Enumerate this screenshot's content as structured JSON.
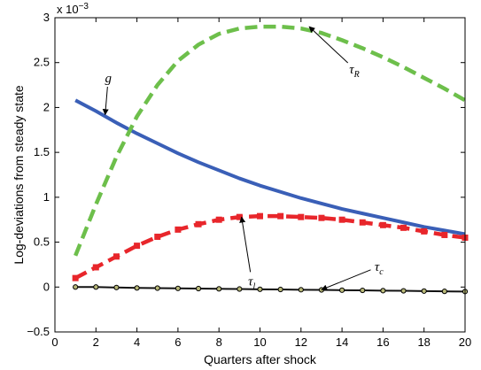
{
  "chart_data": {
    "type": "line",
    "xlabel": "Quarters after shock",
    "ylabel": "Log-deviations from steady state",
    "y_multiplier": "x 10",
    "y_multiplier_exp": "−3",
    "xlim": [
      0,
      20
    ],
    "ylim": [
      -0.5,
      3
    ],
    "x_ticks": [
      0,
      2,
      4,
      6,
      8,
      10,
      12,
      14,
      16,
      18,
      20
    ],
    "y_ticks": [
      -0.5,
      0,
      0.5,
      1,
      1.5,
      2,
      2.5,
      3
    ],
    "y_tick_labels": [
      "−0.5",
      "0",
      "0.5",
      "1",
      "1.5",
      "2",
      "2.5",
      "3"
    ],
    "grid": false,
    "legend": "none",
    "x": [
      1,
      2,
      3,
      4,
      5,
      6,
      7,
      8,
      9,
      10,
      11,
      12,
      13,
      14,
      15,
      16,
      17,
      18,
      19,
      20
    ],
    "series": [
      {
        "label": "g",
        "color": "#3a5fb7",
        "style": "solid",
        "marker": "none",
        "values": [
          2.08,
          1.96,
          1.83,
          1.71,
          1.6,
          1.49,
          1.39,
          1.3,
          1.21,
          1.13,
          1.06,
          0.99,
          0.93,
          0.87,
          0.82,
          0.77,
          0.72,
          0.67,
          0.63,
          0.59
        ]
      },
      {
        "label": "τ_R",
        "color": "#6dbf4b",
        "style": "dashed",
        "marker": "none",
        "values": [
          0.35,
          0.92,
          1.45,
          1.9,
          2.25,
          2.52,
          2.7,
          2.82,
          2.88,
          2.9,
          2.9,
          2.88,
          2.83,
          2.75,
          2.66,
          2.56,
          2.45,
          2.33,
          2.21,
          2.08
        ]
      },
      {
        "label": "τ_l",
        "color": "#e8262b",
        "style": "dashed",
        "marker": "square",
        "values": [
          0.1,
          0.22,
          0.34,
          0.46,
          0.56,
          0.64,
          0.7,
          0.75,
          0.78,
          0.79,
          0.79,
          0.78,
          0.77,
          0.75,
          0.72,
          0.69,
          0.66,
          0.62,
          0.58,
          0.55
        ]
      },
      {
        "label": "τ_c",
        "color": "#111111",
        "style": "solid",
        "marker": "circle",
        "values": [
          0.0,
          0.0,
          -0.005,
          -0.01,
          -0.012,
          -0.015,
          -0.017,
          -0.02,
          -0.022,
          -0.025,
          -0.027,
          -0.03,
          -0.032,
          -0.035,
          -0.037,
          -0.04,
          -0.042,
          -0.045,
          -0.048,
          -0.05
        ]
      }
    ],
    "annotations": [
      {
        "main": "g",
        "sub": "",
        "text_at": [
          2.6,
          2.28
        ],
        "arrow_to": [
          2.45,
          1.92
        ]
      },
      {
        "main": "τ",
        "sub": "R",
        "text_at": [
          14.6,
          2.38
        ],
        "arrow_to": [
          12.4,
          2.9
        ]
      },
      {
        "main": "τ",
        "sub": "l",
        "text_at": [
          9.6,
          0.02
        ],
        "arrow_to": [
          9.1,
          0.78
        ]
      },
      {
        "main": "τ",
        "sub": "c",
        "text_at": [
          15.8,
          0.18
        ],
        "arrow_to": [
          13.0,
          -0.03
        ]
      }
    ]
  }
}
